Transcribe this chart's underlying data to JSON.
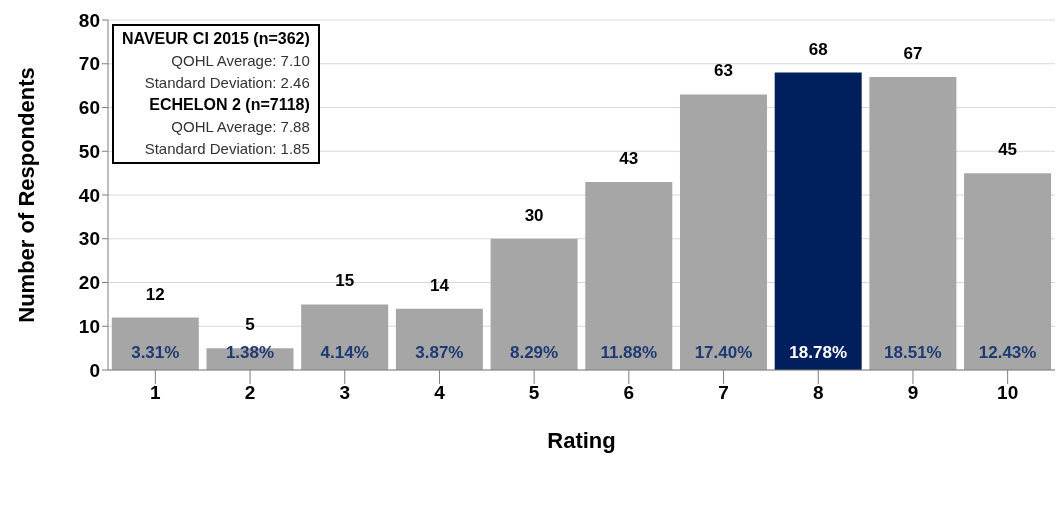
{
  "chart_data": {
    "type": "bar",
    "xlabel": "Rating",
    "ylabel": "Number of Respondents",
    "categories": [
      "1",
      "2",
      "3",
      "4",
      "5",
      "6",
      "7",
      "8",
      "9",
      "10"
    ],
    "values": [
      12,
      5,
      15,
      14,
      30,
      43,
      63,
      68,
      67,
      45
    ],
    "colors": [
      "#a6a6a6",
      "#a6a6a6",
      "#a6a6a6",
      "#a6a6a6",
      "#a6a6a6",
      "#a6a6a6",
      "#a6a6a6",
      "#001f5c",
      "#a6a6a6",
      "#a6a6a6"
    ],
    "ylim": [
      0,
      80
    ],
    "yticks": [
      0,
      10,
      20,
      30,
      40,
      50,
      60,
      70,
      80
    ],
    "grid": "y",
    "data_labels": true,
    "annotations": [
      "NAVEUR CI 2015 (n=362)",
      "QOHL Average:  7.10",
      "Standard Deviation:  2.46",
      "ECHELON 2 (n=7118)",
      "QOHL Average:  7.88",
      "Standard Deviation:  1.85",
      "3.31%",
      "1.38%",
      "4.14%",
      "3.87%",
      "8.29%",
      "11.88%",
      "17.40%",
      "18.78%",
      "18.51%",
      "12.43%"
    ]
  }
}
